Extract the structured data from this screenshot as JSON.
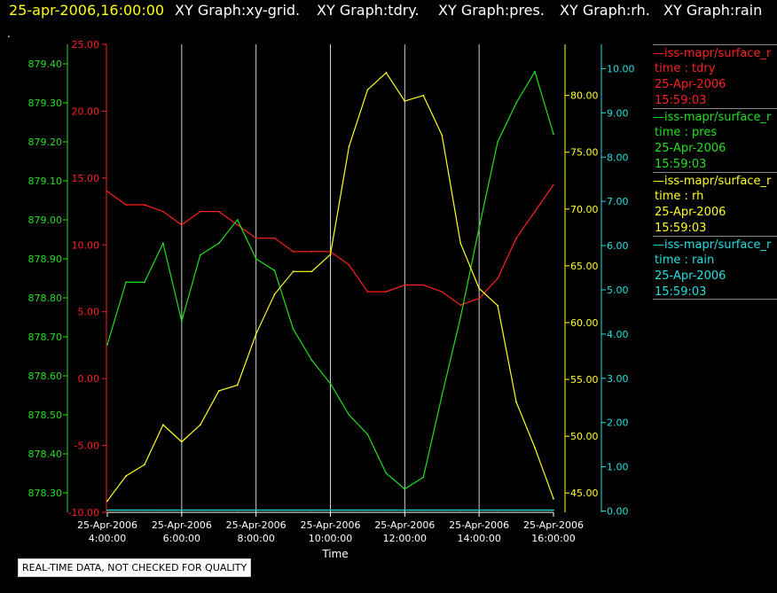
{
  "header": {
    "datetime": "25-apr-2006,16:00:00",
    "graphs": [
      "XY Graph:xy-grid.",
      "XY Graph:tdry.",
      "XY Graph:pres.",
      "XY Graph:rh.",
      "XY Graph:rain"
    ]
  },
  "dot": ".",
  "colors": {
    "tdry": "#ff2020",
    "pres": "#20e020",
    "rh": "#ffff20",
    "rain": "#20e0e0",
    "grid": "#d0d0d0",
    "header": "#ffff00"
  },
  "legend": [
    {
      "key": "tdry",
      "name": "—iss-mapr/surface_r",
      "field": "time : tdry",
      "date": "25-Apr-2006",
      "time": "15:59:03"
    },
    {
      "key": "pres",
      "name": "—iss-mapr/surface_r",
      "field": "time : pres",
      "date": "25-Apr-2006",
      "time": "15:59:03"
    },
    {
      "key": "rh",
      "name": "—iss-mapr/surface_r",
      "field": "time : rh",
      "date": "25-Apr-2006",
      "time": "15:59:03"
    },
    {
      "key": "rain",
      "name": "—iss-mapr/surface_r",
      "field": "time : rain",
      "date": "25-Apr-2006",
      "time": "15:59:03"
    }
  ],
  "disclaimer": "REAL-TIME DATA, NOT CHECKED FOR QUALITY",
  "chart_data": {
    "type": "line",
    "xlabel": "Time",
    "x_range": [
      "25-Apr-2006 4:00:00",
      "25-Apr-2006 16:00:00"
    ],
    "x_ticks": [
      {
        "date": "25-Apr-2006",
        "time": "4:00:00"
      },
      {
        "date": "25-Apr-2006",
        "time": "6:00:00"
      },
      {
        "date": "25-Apr-2006",
        "time": "8:00:00"
      },
      {
        "date": "25-Apr-2006",
        "time": "10:00:00"
      },
      {
        "date": "25-Apr-2006",
        "time": "12:00:00"
      },
      {
        "date": "25-Apr-2006",
        "time": "14:00:00"
      },
      {
        "date": "25-Apr-2006",
        "time": "16:00:00"
      }
    ],
    "x_hours": [
      4,
      4.5,
      5,
      5.5,
      6,
      6.5,
      7,
      7.5,
      8,
      8.5,
      9,
      9.5,
      10,
      10.5,
      11,
      11.5,
      12,
      12.5,
      13,
      13.5,
      14,
      14.5,
      15,
      15.5,
      16
    ],
    "grid": true,
    "legend_position": "right",
    "axes": {
      "tdry": {
        "ylim": [
          -10,
          25
        ],
        "ticks": [
          "25.00",
          "20.00",
          "15.00",
          "10.00",
          "5.00",
          "0.00",
          "-5.00",
          "-10.00"
        ],
        "tick_values": [
          25,
          20,
          15,
          10,
          5,
          0,
          -5,
          -10
        ]
      },
      "pres": {
        "ylim": [
          878.25,
          879.45
        ],
        "ticks": [
          "879.40",
          "879.30",
          "879.20",
          "879.10",
          "879.00",
          "878.90",
          "878.80",
          "878.70",
          "878.60",
          "878.50",
          "878.40",
          "878.30"
        ],
        "tick_values": [
          879.4,
          879.3,
          879.2,
          879.1,
          879.0,
          878.9,
          878.8,
          878.7,
          878.6,
          878.5,
          878.4,
          878.3
        ]
      },
      "rh": {
        "ylim": [
          43.3,
          84.5
        ],
        "ticks": [
          "80.00",
          "75.00",
          "70.00",
          "65.00",
          "60.00",
          "55.00",
          "50.00",
          "45.00"
        ],
        "tick_values": [
          80,
          75,
          70,
          65,
          60,
          55,
          50,
          45
        ]
      },
      "rain": {
        "ylim": [
          -0.03,
          10.55
        ],
        "ticks": [
          "10.00",
          "9.00",
          "8.00",
          "7.00",
          "6.00",
          "5.00",
          "4.00",
          "3.00",
          "2.00",
          "1.00",
          "0.00"
        ],
        "tick_values": [
          10,
          9,
          8,
          7,
          6,
          5,
          4,
          3,
          2,
          1,
          0
        ]
      }
    },
    "series": [
      {
        "key": "tdry",
        "values": [
          14.0,
          13.0,
          13.0,
          12.5,
          11.5,
          12.5,
          12.5,
          11.5,
          10.5,
          10.5,
          9.5,
          9.5,
          9.5,
          8.5,
          6.5,
          6.5,
          7.0,
          7.0,
          6.5,
          5.5,
          6.0,
          7.5,
          10.5,
          12.5,
          14.5
        ]
      },
      {
        "key": "pres",
        "values": [
          878.68,
          878.84,
          878.84,
          878.94,
          878.74,
          878.91,
          878.94,
          879.0,
          878.9,
          878.87,
          878.72,
          878.64,
          878.58,
          878.5,
          878.45,
          878.35,
          878.31,
          878.34,
          878.55,
          878.75,
          878.98,
          879.2,
          879.3,
          879.38,
          879.22
        ]
      },
      {
        "key": "rh",
        "values": [
          44.3,
          46.5,
          47.5,
          51.0,
          49.5,
          51.0,
          54.0,
          54.5,
          59.0,
          62.5,
          64.5,
          64.5,
          66.0,
          75.5,
          80.5,
          82.0,
          79.5,
          80.0,
          76.5,
          67.0,
          63.0,
          61.5,
          53.0,
          49.0,
          44.5
        ]
      },
      {
        "key": "rain",
        "values": [
          0.02,
          0.02,
          0.02,
          0.02,
          0.02,
          0.02,
          0.02,
          0.02,
          0.02,
          0.02,
          0.02,
          0.02,
          0.02,
          0.02,
          0.02,
          0.02,
          0.02,
          0.02,
          0.02,
          0.02,
          0.02,
          0.02,
          0.02,
          0.02,
          0.02
        ]
      }
    ]
  }
}
